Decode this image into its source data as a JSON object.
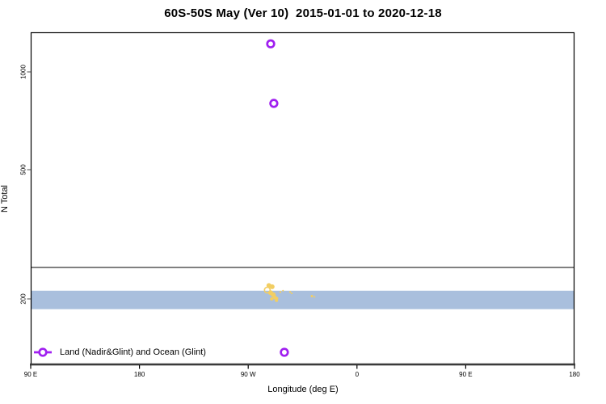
{
  "title": "60S-50S May (Ver 10)  2015-01-01 to 2020-12-18",
  "axes": {
    "x_label": "Longitude (deg E)",
    "y_label": "N Total",
    "x_ticks": [
      {
        "label": "90 E",
        "f": 0.0
      },
      {
        "label": "180",
        "f": 0.2
      },
      {
        "label": "90 W",
        "f": 0.4
      },
      {
        "label": "0",
        "f": 0.6
      },
      {
        "label": "90 E",
        "f": 0.8
      },
      {
        "label": "180",
        "f": 1.0
      }
    ],
    "y_ticks": [
      {
        "label": "1000",
        "value": 1000
      },
      {
        "label": "500",
        "value": 500
      },
      {
        "label": "200",
        "value": 200
      }
    ]
  },
  "legend": {
    "label": "Land (Nadir&Glint) and Ocean (Glint)",
    "marker": "open-circle-on-line",
    "marker_color": "#A020F0"
  },
  "colors": {
    "purple_marker": "#A020F0",
    "gold_cluster": "#F2CE63",
    "band_blue": "#A9BFDD",
    "reference_line": "#000000",
    "axis_border": "#000000",
    "axis_heavy": "#3a3a3a",
    "tick_gray": "#808080"
  },
  "chart_data": {
    "type": "scatter",
    "title": "60S-50S May (Ver 10)  2015-01-01 to 2020-12-18",
    "xlabel": "Longitude (deg E)",
    "ylabel": "N Total",
    "x_axis": {
      "wrapped_tick_labels": [
        "90 E",
        "180",
        "90 W",
        "0",
        "90 E",
        "180"
      ],
      "start_deg_e": 90,
      "end_deg_e": 540
    },
    "y_axis": {
      "scale": "log",
      "ylim": [
        125,
        1324
      ],
      "ticks": [
        1000,
        500,
        200
      ]
    },
    "reference_line_y": 250,
    "band": {
      "y_min": 186,
      "y_max": 212
    },
    "series": [
      {
        "name": "Land (Nadir&Glint) and Ocean (Glint)",
        "marker": "open-circle",
        "color": "#A020F0",
        "points": [
          {
            "lon_deg_e": 288.6,
            "n": 1220
          },
          {
            "lon_deg_e": 291.2,
            "n": 800
          },
          {
            "lon_deg_e": 299.9,
            "n": 137
          }
        ]
      },
      {
        "name": "dense-count-cluster",
        "marker": "small-filled-circle",
        "color": "#F2CE63",
        "points": [
          {
            "lon_deg_e": 287.1,
            "n": 220,
            "r": 3
          },
          {
            "lon_deg_e": 289.8,
            "n": 218,
            "r": 3
          },
          {
            "lon_deg_e": 285.8,
            "n": 213,
            "r": 3.5,
            "open": true
          },
          {
            "lon_deg_e": 288.5,
            "n": 209,
            "r": 3
          },
          {
            "lon_deg_e": 290.7,
            "n": 206,
            "r": 3
          },
          {
            "lon_deg_e": 292.1,
            "n": 202,
            "r": 2.5
          },
          {
            "lon_deg_e": 289.4,
            "n": 200,
            "r": 2
          },
          {
            "lon_deg_e": 293.4,
            "n": 198,
            "r": 2
          },
          {
            "lon_deg_e": 293.9,
            "n": 201,
            "r": 1.5
          },
          {
            "lon_deg_e": 296.6,
            "n": 210,
            "r": 1.2
          },
          {
            "lon_deg_e": 298.8,
            "n": 212,
            "r": 1
          },
          {
            "lon_deg_e": 304.7,
            "n": 210,
            "r": 1.2
          },
          {
            "lon_deg_e": 306.0,
            "n": 208,
            "r": 1
          },
          {
            "lon_deg_e": 322.7,
            "n": 204,
            "r": 1.5
          },
          {
            "lon_deg_e": 324.9,
            "n": 203,
            "r": 1
          }
        ]
      }
    ],
    "legend_position": "bottom-left-inside"
  }
}
